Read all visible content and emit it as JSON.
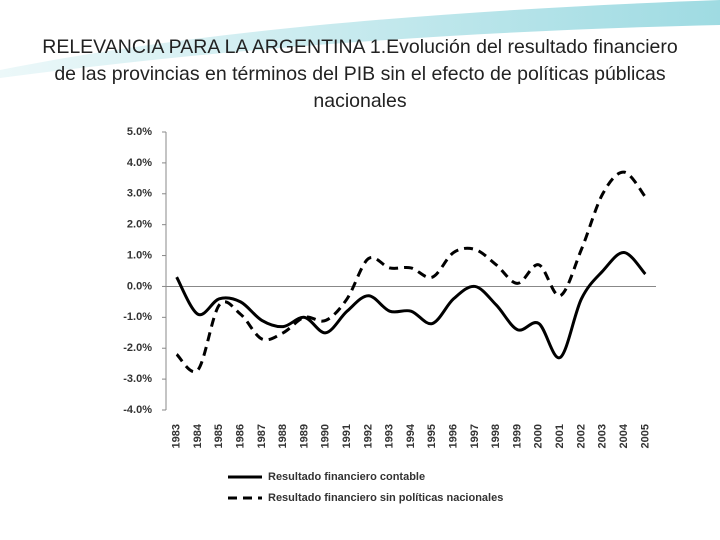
{
  "chart_data": {
    "type": "line",
    "title": "RELEVANCIA PARA LA ARGENTINA  1.Evolución del resultado financiero de las provincias  en términos del PIB sin el efecto de políticas públicas nacionales",
    "categories": [
      "1983",
      "1984",
      "1985",
      "1986",
      "1987",
      "1988",
      "1989",
      "1990",
      "1991",
      "1992",
      "1993",
      "1994",
      "1995",
      "1996",
      "1997",
      "1998",
      "1999",
      "2000",
      "2001",
      "2002",
      "2003",
      "2004",
      "2005"
    ],
    "series": [
      {
        "name": "Resultado financiero contable",
        "color": "#000000",
        "dash": false,
        "values": [
          0.3,
          -0.9,
          -0.4,
          -0.5,
          -1.1,
          -1.3,
          -1.0,
          -1.5,
          -0.8,
          -0.3,
          -0.8,
          -0.8,
          -1.2,
          -0.4,
          0.0,
          -0.6,
          -1.4,
          -1.2,
          -2.3,
          -0.4,
          0.5,
          1.1,
          0.4
        ]
      },
      {
        "name": "Resultado financiero sin políticas nacionales",
        "color": "#000000",
        "dash": true,
        "values": [
          -2.2,
          -2.7,
          -0.6,
          -0.9,
          -1.7,
          -1.5,
          -1.0,
          -1.1,
          -0.4,
          0.9,
          0.6,
          0.6,
          0.3,
          1.1,
          1.2,
          0.7,
          0.1,
          0.7,
          -0.3,
          1.2,
          3.0,
          3.7,
          2.9
        ]
      }
    ],
    "ylim": [
      -4,
      5
    ],
    "yticks": [
      {
        "value": 5,
        "label": "5.0%"
      },
      {
        "value": 4,
        "label": "4.0%"
      },
      {
        "value": 3,
        "label": "3.0%"
      },
      {
        "value": 2,
        "label": "2.0%"
      },
      {
        "value": 1,
        "label": "1.0%"
      },
      {
        "value": 0,
        "label": "0.0%"
      },
      {
        "value": -1,
        "label": "-1.0%"
      },
      {
        "value": -2,
        "label": "-2.0%"
      },
      {
        "value": -3,
        "label": "-3.0%"
      },
      {
        "value": -4,
        "label": "-4.0%"
      }
    ],
    "grid": false
  }
}
